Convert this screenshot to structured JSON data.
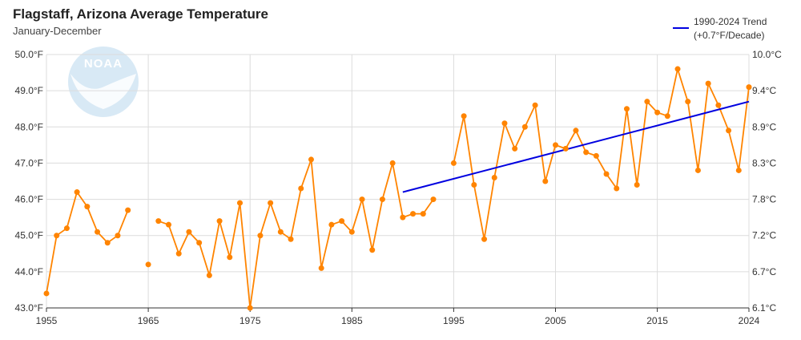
{
  "header": {
    "title": "Flagstaff, Arizona Average Temperature",
    "subtitle": "January-December"
  },
  "logo": {
    "text": "NOAA"
  },
  "legend": {
    "line1": "1990-2024 Trend",
    "line2": "(+0.7°F/Decade)",
    "color": "#0000e0"
  },
  "colors": {
    "data_line": "#ff8400",
    "trend_line": "#0000e0",
    "grid": "#dcdcdc",
    "axis": "#333333",
    "logo_fill": "#d8e9f5"
  },
  "chart_data": {
    "type": "line",
    "title": "Flagstaff, Arizona Average Temperature",
    "subtitle": "January-December",
    "xlim": [
      1955,
      2024
    ],
    "x_ticks": [
      1955,
      1965,
      1975,
      1985,
      1995,
      2005,
      2015,
      2024
    ],
    "ylim": [
      43.0,
      50.0
    ],
    "y_ticks_left": [
      "43.0°F",
      "44.0°F",
      "45.0°F",
      "46.0°F",
      "47.0°F",
      "48.0°F",
      "49.0°F",
      "50.0°F"
    ],
    "y_ticks_right": [
      "6.1°C",
      "6.7°C",
      "7.2°C",
      "7.8°C",
      "8.3°C",
      "8.9°C",
      "9.4°C",
      "10.0°C"
    ],
    "grid": true,
    "legend_position": "top-right",
    "series": [
      {
        "type": "line",
        "points": [
          [
            1955,
            43.4
          ],
          [
            1956,
            45.0
          ],
          [
            1957,
            45.2
          ],
          [
            1958,
            46.2
          ],
          [
            1959,
            45.8
          ],
          [
            1960,
            45.1
          ],
          [
            1961,
            44.8
          ],
          [
            1962,
            45.0
          ],
          [
            1963,
            45.7
          ],
          [
            1966,
            45.4
          ],
          [
            1967,
            45.3
          ],
          [
            1968,
            44.5
          ],
          [
            1969,
            45.1
          ],
          [
            1970,
            44.8
          ],
          [
            1971,
            43.9
          ],
          [
            1972,
            45.4
          ],
          [
            1973,
            44.4
          ],
          [
            1974,
            45.9
          ],
          [
            1975,
            43.0
          ],
          [
            1976,
            45.0
          ],
          [
            1977,
            45.9
          ],
          [
            1978,
            45.1
          ],
          [
            1979,
            44.9
          ],
          [
            1980,
            46.3
          ],
          [
            1981,
            47.1
          ],
          [
            1982,
            44.1
          ],
          [
            1983,
            45.3
          ],
          [
            1984,
            45.4
          ],
          [
            1985,
            45.1
          ],
          [
            1986,
            46.0
          ],
          [
            1987,
            44.6
          ],
          [
            1988,
            46.0
          ],
          [
            1989,
            47.0
          ],
          [
            1990,
            45.5
          ],
          [
            1991,
            45.6
          ],
          [
            1992,
            45.6
          ],
          [
            1993,
            46.0
          ],
          [
            1995,
            47.0
          ],
          [
            1996,
            48.3
          ],
          [
            1997,
            46.4
          ],
          [
            1998,
            44.9
          ],
          [
            1999,
            46.6
          ],
          [
            2000,
            48.1
          ],
          [
            2001,
            47.4
          ],
          [
            2002,
            48.0
          ],
          [
            2003,
            48.6
          ],
          [
            2004,
            46.5
          ],
          [
            2005,
            47.5
          ],
          [
            2006,
            47.4
          ],
          [
            2007,
            47.9
          ],
          [
            2008,
            47.3
          ],
          [
            2009,
            47.2
          ],
          [
            2010,
            46.7
          ],
          [
            2011,
            46.3
          ],
          [
            2012,
            48.5
          ],
          [
            2013,
            46.4
          ],
          [
            2014,
            48.7
          ],
          [
            2015,
            48.4
          ],
          [
            2016,
            48.3
          ],
          [
            2017,
            49.6
          ],
          [
            2018,
            48.7
          ],
          [
            2019,
            46.8
          ],
          [
            2020,
            49.2
          ],
          [
            2021,
            48.6
          ],
          [
            2022,
            47.9
          ],
          [
            2023,
            46.8
          ],
          [
            2024,
            49.1
          ]
        ],
        "single_points": [
          [
            1965,
            44.2
          ]
        ]
      },
      {
        "name": "1990-2024 Trend (+0.7°F/Decade)",
        "type": "line",
        "x": [
          1990,
          2024
        ],
        "y": [
          46.2,
          48.7
        ]
      }
    ]
  }
}
